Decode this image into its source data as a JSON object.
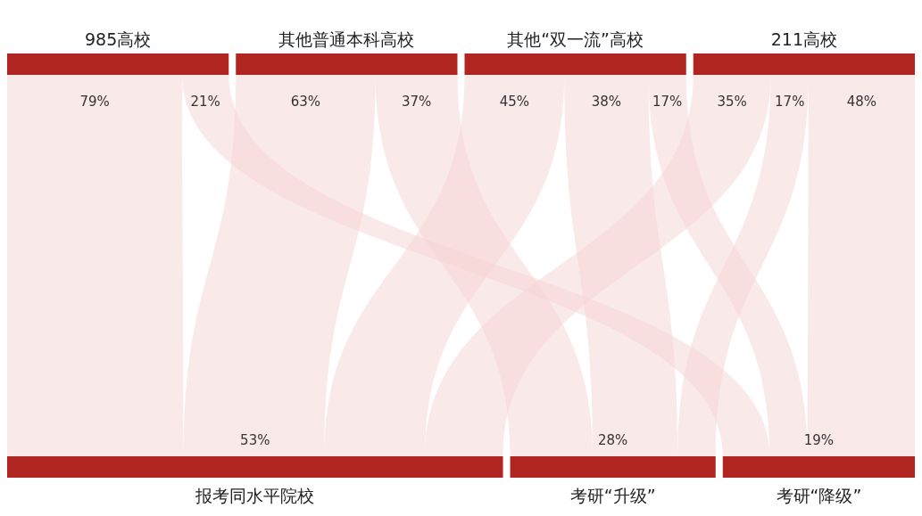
{
  "chart_data": {
    "type": "other",
    "categories": [
      "985高校",
      "其他普通本科高校",
      "其他“双一流”高校",
      "211高校"
    ],
    "color": "#b0251f",
    "series": [
      {
        "name": "报考同水平院校",
        "color": "#f6d3d3",
        "values": [
          79,
          63,
          45,
          35
        ],
        "value_labels": [
          "79%",
          "63%",
          "45%",
          "35%"
        ]
      },
      {
        "name": "考研“升级”",
        "color": "#f6d3d3",
        "values": [
          null,
          37,
          38,
          17
        ],
        "value_labels": [
          null,
          "37%",
          "38%",
          "17%"
        ]
      },
      {
        "name": "考研“降级”",
        "color": "#f6d3d3",
        "values": [
          21,
          null,
          17,
          48
        ],
        "value_labels": [
          "21%",
          null,
          "17%",
          "48%"
        ]
      }
    ],
    "totals": [
      "53%",
      "28%",
      "19%"
    ]
  }
}
